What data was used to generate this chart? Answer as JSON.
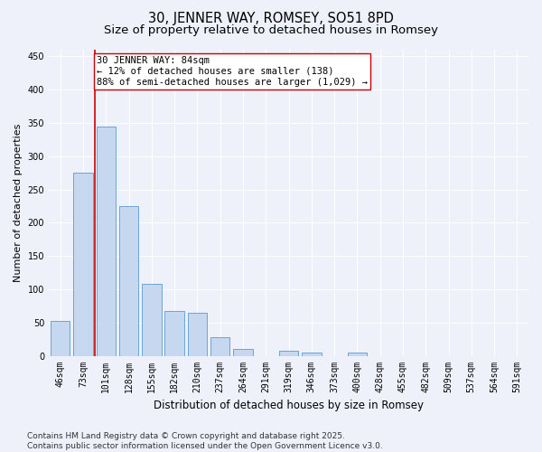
{
  "title": "30, JENNER WAY, ROMSEY, SO51 8PD",
  "subtitle": "Size of property relative to detached houses in Romsey",
  "xlabel": "Distribution of detached houses by size in Romsey",
  "ylabel": "Number of detached properties",
  "categories": [
    "46sqm",
    "73sqm",
    "101sqm",
    "128sqm",
    "155sqm",
    "182sqm",
    "210sqm",
    "237sqm",
    "264sqm",
    "291sqm",
    "319sqm",
    "346sqm",
    "373sqm",
    "400sqm",
    "428sqm",
    "455sqm",
    "482sqm",
    "509sqm",
    "537sqm",
    "564sqm",
    "591sqm"
  ],
  "values": [
    52,
    275,
    345,
    225,
    108,
    68,
    65,
    28,
    10,
    0,
    8,
    5,
    0,
    5,
    0,
    0,
    0,
    0,
    0,
    0,
    0
  ],
  "bar_color": "#c5d8f0",
  "bar_edge_color": "#5b9bd5",
  "bar_width": 0.85,
  "vline_pos": 1.5,
  "vline_color": "#cc0000",
  "annotation_text": "30 JENNER WAY: 84sqm\n← 12% of detached houses are smaller (138)\n88% of semi-detached houses are larger (1,029) →",
  "annotation_box_facecolor": "#ffffff",
  "annotation_box_edgecolor": "#cc0000",
  "annotation_fontsize": 7.5,
  "ylim": [
    0,
    460
  ],
  "yticks": [
    0,
    50,
    100,
    150,
    200,
    250,
    300,
    350,
    400,
    450
  ],
  "background_color": "#eef1fa",
  "grid_color": "#ffffff",
  "title_fontsize": 10.5,
  "subtitle_fontsize": 9.5,
  "axis_label_fontsize": 8.5,
  "ylabel_fontsize": 8,
  "tick_fontsize": 7,
  "footer_text": "Contains HM Land Registry data © Crown copyright and database right 2025.\nContains public sector information licensed under the Open Government Licence v3.0.",
  "footer_fontsize": 6.5
}
